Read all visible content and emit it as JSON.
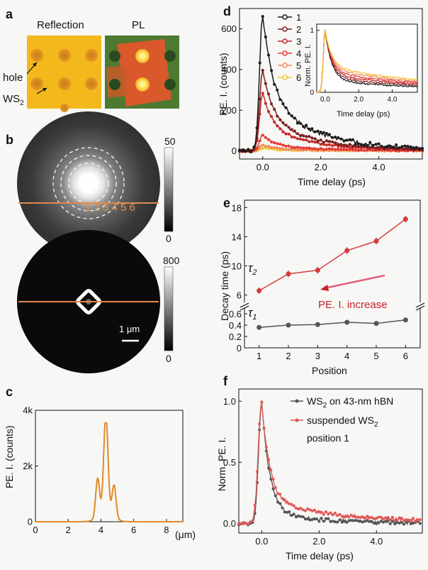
{
  "panels": {
    "a": {
      "label": "a",
      "reflection_title": "Reflection",
      "pl_title": "PL",
      "annot_hole": "hole",
      "annot_ws2": "WS",
      "annot_ws2_sub": "2"
    },
    "b": {
      "label": "b",
      "positions_text": "1 2 3 4 5 6",
      "colorbar_top": {
        "max": "50",
        "min": "0"
      },
      "colorbar_bottom": {
        "max": "800",
        "min": "0"
      },
      "scalebar": "1 μm"
    },
    "c": {
      "label": "c"
    },
    "d": {
      "label": "d"
    },
    "e": {
      "label": "e"
    },
    "f": {
      "label": "f"
    }
  },
  "chart_data": [
    {
      "id": "c",
      "type": "line",
      "xlabel": "",
      "xunit": "(μm)",
      "ylabel": "PE. I. (counts)",
      "xlim": [
        0,
        9
      ],
      "ylim": [
        0,
        4000
      ],
      "xticks": [
        0,
        2,
        4,
        6,
        8
      ],
      "xtick_labels": [
        "0",
        "2",
        "4",
        "6",
        "8"
      ],
      "yticks": [
        0,
        2000,
        4000
      ],
      "ytick_labels": [
        "0",
        "2k",
        "4k"
      ],
      "color": "#e08a2a",
      "peaks": [
        {
          "x": 3.8,
          "y": 1400
        },
        {
          "x": 4.3,
          "y": 3550
        },
        {
          "x": 4.8,
          "y": 1150
        }
      ]
    },
    {
      "id": "d",
      "type": "line",
      "xlabel": "Time delay (ps)",
      "ylabel": "PE. I. (counts)",
      "xlim": [
        -0.8,
        5.5
      ],
      "ylim": [
        -40,
        700
      ],
      "xticks": [
        0,
        2,
        4
      ],
      "xtick_labels": [
        "0.0",
        "2.0",
        "4.0"
      ],
      "yticks": [
        0,
        200,
        400,
        600
      ],
      "ytick_labels": [
        "0",
        "200",
        "400",
        "600"
      ],
      "series": [
        {
          "name": "1",
          "color": "#1a1a1a",
          "peak": 670
        },
        {
          "name": "2",
          "color": "#7a1f1f",
          "peak": 400
        },
        {
          "name": "3",
          "color": "#c62828",
          "peak": 285
        },
        {
          "name": "4",
          "color": "#e53935",
          "peak": 80
        },
        {
          "name": "5",
          "color": "#f08a5d",
          "peak": 30
        },
        {
          "name": "6",
          "color": "#f4c430",
          "peak": 15
        }
      ],
      "inset": {
        "xlabel": "Time delay (ps)",
        "ylabel": "Norm. PE. I.",
        "xlim": [
          -0.5,
          5.5
        ],
        "ylim": [
          0,
          1.1
        ],
        "xticks": [
          0,
          2,
          4
        ],
        "xtick_labels": [
          "0.0",
          "2.0",
          "4.0"
        ],
        "yticks": [
          0,
          1
        ],
        "ytick_labels": [
          "0",
          "1"
        ]
      }
    },
    {
      "id": "e",
      "type": "line",
      "xlabel": "Position",
      "ylabel": "Decay time (ps)",
      "x": [
        1,
        2,
        3,
        4,
        5,
        6
      ],
      "xlim": [
        0.5,
        6.5
      ],
      "upper": {
        "ylim": [
          5,
          19
        ],
        "yticks": [
          6,
          10,
          14,
          18
        ],
        "ytick_labels": [
          "6",
          "10",
          "14",
          "18"
        ],
        "series_label": "τ",
        "series_sub": "2",
        "values": [
          6.6,
          8.9,
          9.4,
          12.1,
          13.4,
          16.4
        ],
        "color": "#d33a3a"
      },
      "lower": {
        "ylim": [
          0,
          0.7
        ],
        "yticks": [
          0,
          0.2,
          0.4,
          0.6
        ],
        "ytick_labels": [
          "0",
          "0.2",
          "0.4",
          "0.6"
        ],
        "series_label": "τ",
        "series_sub": "1",
        "values": [
          0.36,
          0.4,
          0.41,
          0.45,
          0.43,
          0.49
        ],
        "color": "#555555"
      },
      "annotation": "PE. I. increase"
    },
    {
      "id": "f",
      "type": "line",
      "xlabel": "Time delay (ps)",
      "ylabel": "Norm. PE. I.",
      "xlim": [
        -0.8,
        5.6
      ],
      "ylim": [
        -0.08,
        1.1
      ],
      "xticks": [
        0,
        2,
        4
      ],
      "xtick_labels": [
        "0.0",
        "2.0",
        "4.0"
      ],
      "yticks": [
        0,
        0.5,
        1
      ],
      "ytick_labels": [
        "0.0",
        "0.5",
        "1.0"
      ],
      "series": [
        {
          "name": "WS",
          "name_sub": "2",
          "name_rest": " on 43-nm hBN",
          "color": "#555555"
        },
        {
          "name": "suspended WS",
          "name_sub": "2",
          "name_line2": "position 1",
          "color": "#e05a5a"
        }
      ]
    }
  ]
}
